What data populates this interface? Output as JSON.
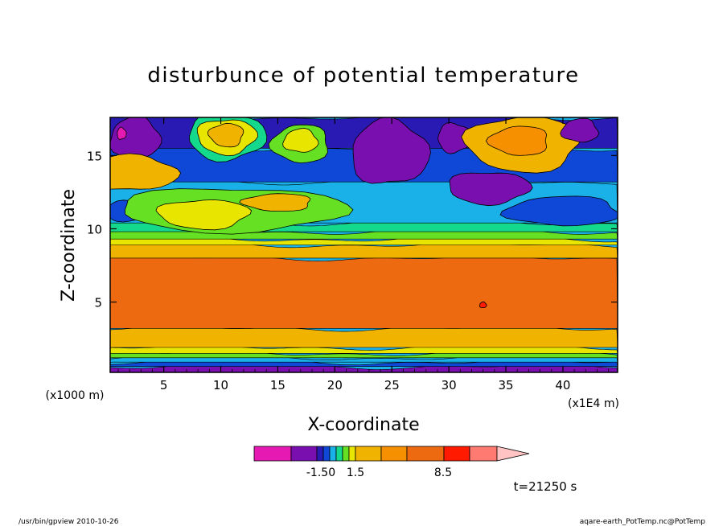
{
  "chart_data": {
    "type": "heatmap",
    "title": "disturbunce of potential temperature",
    "xlabel": "X-coordinate",
    "ylabel": "Z-coordinate",
    "x_unit": "(x1E4 m)",
    "y_unit": "(x1000 m)",
    "xlim": [
      0.3,
      44.8
    ],
    "ylim": [
      0.2,
      17.6
    ],
    "x_ticks": [
      5,
      10,
      15,
      20,
      25,
      30,
      35,
      40
    ],
    "y_ticks": [
      5,
      10,
      15
    ],
    "x_tick_labels": [
      "5",
      "10",
      "15",
      "20",
      "25",
      "30",
      "35",
      "40"
    ],
    "y_tick_labels": [
      "5",
      "10",
      "15"
    ],
    "colorbar": {
      "labels": [
        "-1.50",
        "1.5",
        "8.5"
      ],
      "colors": [
        "#e619b3",
        "#7a0fb0",
        "#2a1ab4",
        "#0f47d6",
        "#1ab0e8",
        "#14d88c",
        "#66e022",
        "#e8e600",
        "#f0b300",
        "#f79000",
        "#ee6a10",
        "#ff1a00",
        "#ff7a70",
        "#ffc3c3"
      ]
    },
    "bands": [
      {
        "z_bottom": 0.2,
        "z_top": 0.6,
        "color": "#7a0fb0"
      },
      {
        "z_bottom": 0.6,
        "z_top": 0.9,
        "color": "#0f47d6"
      },
      {
        "z_bottom": 0.9,
        "z_top": 1.2,
        "color": "#1ab0e8"
      },
      {
        "z_bottom": 1.2,
        "z_top": 1.5,
        "color": "#66e022"
      },
      {
        "z_bottom": 1.5,
        "z_top": 1.9,
        "color": "#e8e600"
      },
      {
        "z_bottom": 1.9,
        "z_top": 3.2,
        "color": "#f0b300"
      },
      {
        "z_bottom": 3.2,
        "z_top": 8.0,
        "color": "#ee6a10"
      },
      {
        "z_bottom": 8.0,
        "z_top": 8.9,
        "color": "#f0b300"
      },
      {
        "z_bottom": 8.9,
        "z_top": 9.3,
        "color": "#e8e600"
      },
      {
        "z_bottom": 9.3,
        "z_top": 9.8,
        "color": "#66e022"
      },
      {
        "z_bottom": 9.8,
        "z_top": 10.4,
        "color": "#14d88c"
      },
      {
        "z_bottom": 10.4,
        "z_top": 13.2,
        "color": "#1ab0e8"
      },
      {
        "z_bottom": 13.2,
        "z_top": 15.5,
        "color": "#0f47d6"
      },
      {
        "z_bottom": 15.5,
        "z_top": 17.6,
        "color": "#2a1ab4"
      }
    ],
    "features": [
      {
        "x": 2.5,
        "z": 16.2,
        "rx": 2.2,
        "rz": 1.4,
        "color": "#7a0fb0"
      },
      {
        "x": 1.3,
        "z": 16.5,
        "rx": 0.4,
        "rz": 0.4,
        "color": "#e619b3"
      },
      {
        "x": 10.5,
        "z": 16.3,
        "rx": 3.4,
        "rz": 1.6,
        "color": "#14d88c"
      },
      {
        "x": 10.5,
        "z": 16.3,
        "rx": 2.6,
        "rz": 1.2,
        "color": "#e8e600"
      },
      {
        "x": 10.5,
        "z": 16.4,
        "rx": 1.5,
        "rz": 0.8,
        "color": "#f0b300"
      },
      {
        "x": 17.0,
        "z": 15.8,
        "rx": 2.5,
        "rz": 1.3,
        "color": "#66e022"
      },
      {
        "x": 17.0,
        "z": 16.0,
        "rx": 1.5,
        "rz": 0.8,
        "color": "#e8e600"
      },
      {
        "x": 24.8,
        "z": 15.2,
        "rx": 3.4,
        "rz": 2.2,
        "color": "#7a0fb0"
      },
      {
        "x": 30.5,
        "z": 16.2,
        "rx": 1.5,
        "rz": 1.0,
        "color": "#7a0fb0"
      },
      {
        "x": 33.5,
        "z": 12.8,
        "rx": 3.6,
        "rz": 1.1,
        "color": "#7a0fb0"
      },
      {
        "x": 36.5,
        "z": 15.8,
        "rx": 5.0,
        "rz": 1.9,
        "color": "#f0b300"
      },
      {
        "x": 36.2,
        "z": 16.0,
        "rx": 2.6,
        "rz": 1.0,
        "color": "#f79000"
      },
      {
        "x": 41.5,
        "z": 16.7,
        "rx": 1.6,
        "rz": 0.8,
        "color": "#7a0fb0"
      },
      {
        "x": 2.0,
        "z": 13.8,
        "rx": 4.2,
        "rz": 1.2,
        "color": "#f0b300"
      },
      {
        "x": 2.0,
        "z": 11.2,
        "rx": 2.2,
        "rz": 0.7,
        "color": "#0f47d6"
      },
      {
        "x": 11.0,
        "z": 11.3,
        "rx": 10.0,
        "rz": 1.5,
        "color": "#66e022"
      },
      {
        "x": 8.5,
        "z": 11.0,
        "rx": 4.0,
        "rz": 1.0,
        "color": "#e8e600"
      },
      {
        "x": 15.0,
        "z": 11.8,
        "rx": 3.0,
        "rz": 0.6,
        "color": "#f0b300"
      },
      {
        "x": 40.0,
        "z": 11.2,
        "rx": 5.0,
        "rz": 1.0,
        "color": "#0f47d6"
      },
      {
        "x": 33.0,
        "z": 4.8,
        "rx": 0.3,
        "rz": 0.2,
        "color": "#ff1a00"
      }
    ]
  },
  "timestamp_label": "t=21250 s",
  "footer": {
    "left": "/usr/bin/gpview   2010-10-26",
    "right": "aqare-earth_PotTemp.nc@PotTemp"
  }
}
